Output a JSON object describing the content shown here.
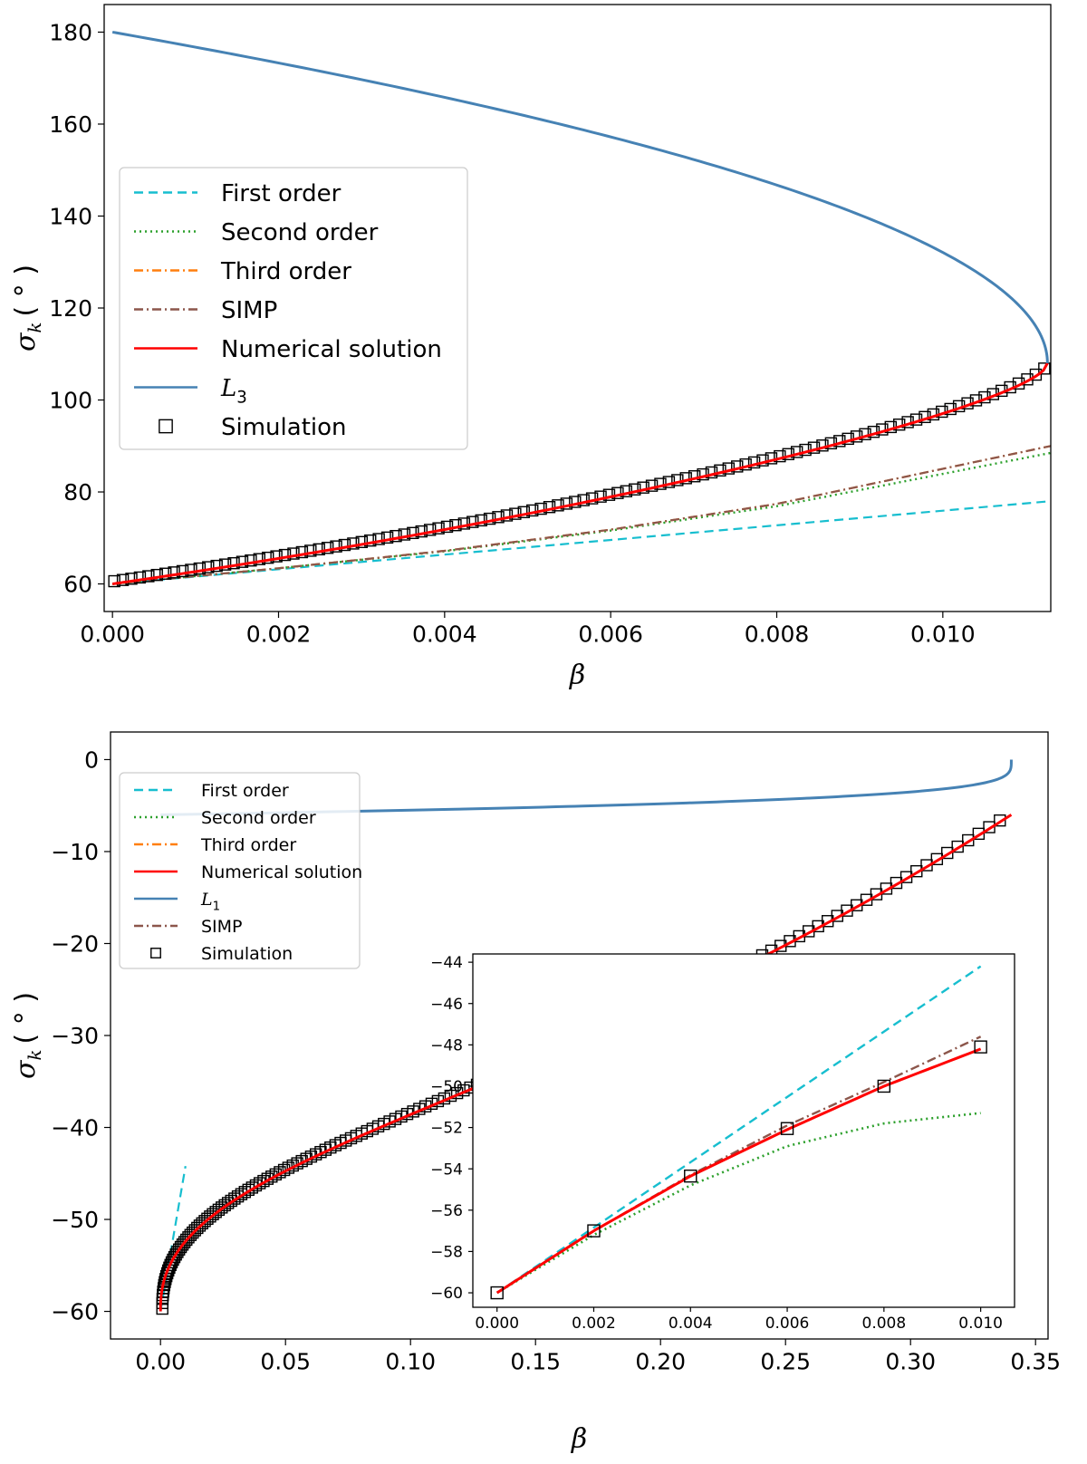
{
  "chart_data": [
    {
      "type": "line",
      "xlabel": "β",
      "ylabel_main": "σ",
      "ylabel_sub": "k",
      "ylabel_unit": "( ° )",
      "xlim": [
        -0.0001,
        0.0113
      ],
      "ylim": [
        54,
        186
      ],
      "xticks": [
        0.0,
        0.002,
        0.004,
        0.006,
        0.008,
        0.01
      ],
      "xtick_labels": [
        "0.000",
        "0.002",
        "0.004",
        "0.006",
        "0.008",
        "0.010"
      ],
      "yticks": [
        60,
        80,
        100,
        120,
        140,
        160,
        180
      ],
      "ytick_labels": [
        "60",
        "80",
        "100",
        "120",
        "140",
        "160",
        "180"
      ],
      "beta_max": 0.01126,
      "sigma_turn": 108,
      "sigma_start_lower": 60,
      "sigma_start_upper": 180,
      "legend_position": "center-left",
      "legend": [
        {
          "key": "first",
          "label": "First order",
          "color": "#17becf",
          "style": "dashed"
        },
        {
          "key": "second",
          "label": "Second order",
          "color": "#2ca02c",
          "style": "dotted"
        },
        {
          "key": "third",
          "label": "Third order",
          "color": "#ff7f0e",
          "style": "dashdot"
        },
        {
          "key": "simp",
          "label": "SIMP",
          "color": "#8c564b",
          "style": "dashdot"
        },
        {
          "key": "numerical",
          "label": "Numerical solution",
          "color": "#ff0000",
          "style": "solid"
        },
        {
          "key": "lagrange",
          "label": "L",
          "sub": "3",
          "color": "#4682b4",
          "style": "solid"
        },
        {
          "key": "simulation",
          "label": "Simulation",
          "color": "#000000",
          "style": "marker"
        }
      ],
      "series": [
        {
          "name": "First order",
          "x": [
            0.0,
            0.0113
          ],
          "y": [
            60,
            78
          ]
        },
        {
          "name": "Second order",
          "x": [
            0.0,
            0.002,
            0.004,
            0.006,
            0.008,
            0.0113
          ],
          "y": [
            60,
            63.4,
            67.1,
            71.6,
            76.9,
            88.5
          ]
        },
        {
          "name": "SIMP",
          "x": [
            0.0,
            0.002,
            0.004,
            0.006,
            0.008,
            0.0113
          ],
          "y": [
            60,
            63.4,
            67.2,
            71.8,
            77.4,
            90
          ]
        },
        {
          "name": "Simulation",
          "x_range": [
            0.0,
            0.0112
          ],
          "count": 110
        }
      ]
    },
    {
      "type": "line",
      "xlabel": "β",
      "ylabel_main": "σ",
      "ylabel_sub": "k",
      "ylabel_unit": "( ° )",
      "xlim": [
        -0.02,
        0.355
      ],
      "ylim": [
        -63,
        3
      ],
      "xticks": [
        0.0,
        0.05,
        0.1,
        0.15,
        0.2,
        0.25,
        0.3,
        0.35
      ],
      "xtick_labels": [
        "0.00",
        "0.05",
        "0.10",
        "0.15",
        "0.20",
        "0.25",
        "0.30",
        "0.35"
      ],
      "yticks": [
        0,
        -10,
        -20,
        -30,
        -40,
        -50,
        -60
      ],
      "ytick_labels": [
        "0",
        "−10",
        "−20",
        "−30",
        "−40",
        "−50",
        "−60"
      ],
      "beta_max": 0.3403,
      "sigma_turn": -6,
      "sigma_start_lower": -60,
      "sigma_start_upper": 0,
      "legend_position": "upper-left",
      "legend": [
        {
          "key": "first",
          "label": "First order",
          "color": "#17becf",
          "style": "dashed"
        },
        {
          "key": "second",
          "label": "Second order",
          "color": "#2ca02c",
          "style": "dotted"
        },
        {
          "key": "third",
          "label": "Third order",
          "color": "#ff7f0e",
          "style": "dashdot"
        },
        {
          "key": "numerical",
          "label": "Numerical solution",
          "color": "#ff0000",
          "style": "solid"
        },
        {
          "key": "lagrange",
          "label": "L",
          "sub": "1",
          "color": "#4682b4",
          "style": "solid"
        },
        {
          "key": "simp",
          "label": "SIMP",
          "color": "#8c564b",
          "style": "dashdot"
        },
        {
          "key": "simulation",
          "label": "Simulation",
          "color": "#000000",
          "style": "marker"
        }
      ],
      "series": [
        {
          "name": "First order",
          "x": [
            0.0,
            0.01
          ],
          "y": [
            -60,
            -44.2
          ]
        },
        {
          "name": "Simulation",
          "x_range": [
            0.0,
            0.335
          ],
          "count": 150
        }
      ]
    },
    {
      "type": "line",
      "role": "inset",
      "xlim": [
        -0.0005,
        0.0107
      ],
      "ylim": [
        -60.7,
        -43.6
      ],
      "xticks": [
        0.0,
        0.002,
        0.004,
        0.006,
        0.008,
        0.01
      ],
      "xtick_labels": [
        "0.000",
        "0.002",
        "0.004",
        "0.006",
        "0.008",
        "0.010"
      ],
      "yticks": [
        -44,
        -46,
        -48,
        -50,
        -52,
        -54,
        -56,
        -58,
        -60
      ],
      "ytick_labels": [
        "−44",
        "−46",
        "−48",
        "−50",
        "−52",
        "−54",
        "−56",
        "−58",
        "−60"
      ],
      "series": [
        {
          "name": "First order",
          "x": [
            0.0,
            0.01
          ],
          "y": [
            -60,
            -44.2
          ]
        },
        {
          "name": "Second order",
          "x": [
            0.0,
            0.002,
            0.004,
            0.006,
            0.008,
            0.01
          ],
          "y": [
            -60,
            -57.2,
            -54.8,
            -52.9,
            -51.8,
            -51.3
          ]
        },
        {
          "name": "SIMP",
          "x": [
            0.0,
            0.002,
            0.004,
            0.006,
            0.008,
            0.01
          ],
          "y": [
            -60,
            -57.0,
            -54.3,
            -51.9,
            -49.8,
            -47.6
          ]
        },
        {
          "name": "Numerical solution",
          "x": [
            0.0,
            0.002,
            0.004,
            0.006,
            0.008,
            0.01
          ],
          "y": [
            -60,
            -57.0,
            -54.35,
            -52.1,
            -50.0,
            -48.2
          ]
        },
        {
          "name": "Simulation",
          "x": [
            0.0,
            0.002,
            0.004,
            0.006,
            0.008,
            0.01
          ],
          "y": [
            -60,
            -57.0,
            -54.35,
            -52.05,
            -50.0,
            -48.1
          ]
        }
      ]
    }
  ]
}
